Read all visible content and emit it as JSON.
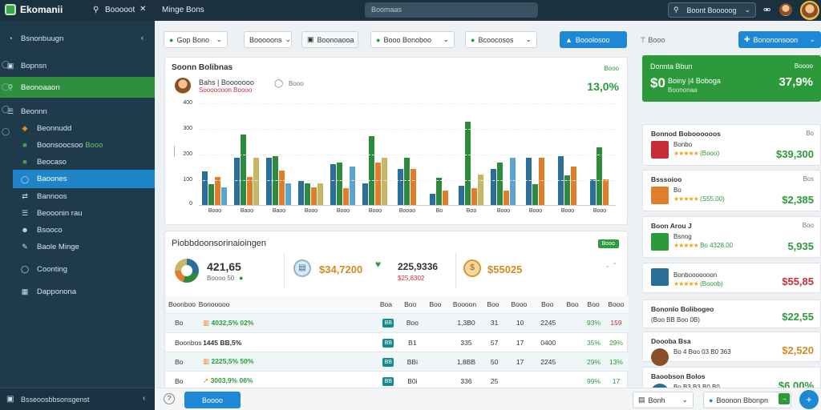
{
  "app": {
    "title": "Ekomanii",
    "logo_color": "#3aa845"
  },
  "topbar": {
    "tab1": "Booooot",
    "tab2": "Minge Bons",
    "search_placeholder": "Boomaas",
    "user_label": "Boont Booooog"
  },
  "sidebar": {
    "items": [
      {
        "label": "Bsnonbuugn",
        "icon": "pie-icon"
      },
      {
        "label": "Bopnsn",
        "icon": "box-icon"
      },
      {
        "label": "Beonoaaon",
        "icon": "search-icon"
      },
      {
        "label": "Beonnn",
        "icon": "list-icon"
      },
      {
        "label": "Beonnudd",
        "icon": "tag-icon"
      },
      {
        "label": "Boonsoocsoo",
        "badge": "Booo",
        "icon": "chart-icon"
      },
      {
        "label": "Beocaso",
        "icon": "doc-icon"
      },
      {
        "label": "Baoones",
        "icon": "circle-icon"
      },
      {
        "label": "Bannoos",
        "icon": "link-icon"
      },
      {
        "label": "Beooonin rau",
        "icon": "menu-icon"
      },
      {
        "label": "Bsooco",
        "icon": "user-icon"
      },
      {
        "label": "Baole Minge",
        "icon": "edit-icon"
      },
      {
        "label": "Coonting",
        "icon": "cog-icon"
      },
      {
        "label": "Dapponona",
        "icon": "grid-icon"
      }
    ],
    "footer": "Bsseoosbbsonsgenst"
  },
  "toolbar": {
    "f1": "Gop Bono",
    "f2": "Booooons",
    "f3": "Boonoaooa",
    "f4": "Booo Bonoboo",
    "f5": "Bcoocosos",
    "action": "Booolosoo",
    "label": "Booo",
    "primary": "Bonononsoon"
  },
  "sales": {
    "title": "Soonn Bolibnas",
    "badge": "Booo",
    "user_name": "Bahs | Booooooo",
    "user_sub": "Sooooooon Boooo",
    "ring_label": "Booo",
    "percent": "13,0%",
    "y_ticks": [
      "400",
      "300",
      "200",
      "100",
      "0"
    ],
    "x_labels": [
      "Booo",
      "Baoo",
      "Baoo",
      "Booo",
      "Booo",
      "Booo",
      "Boooo",
      "Bo",
      "Boo",
      "Booo",
      "Booo",
      "Booo",
      "Booo"
    ]
  },
  "chart_data": {
    "type": "bar",
    "ylim": [
      0,
      400
    ],
    "categories": [
      "Booo",
      "Baoo",
      "Baoo",
      "Booo",
      "Booo",
      "Booo",
      "Boooo",
      "Bo",
      "Boo",
      "Booo",
      "Booo",
      "Booo",
      "Booo"
    ],
    "series": [
      {
        "color": "#2a6f97",
        "values": [
          130,
          185,
          185,
          95,
          160,
          85,
          140,
          45,
          75,
          140,
          185,
          190,
          100
        ]
      },
      {
        "color": "#2e8b3d",
        "values": [
          80,
          275,
          190,
          85,
          165,
          270,
          185,
          105,
          325,
          165,
          80,
          115,
          225
        ]
      },
      {
        "color": "#e07e2c",
        "values": [
          110,
          110,
          135,
          70,
          65,
          165,
          140,
          55,
          65,
          55,
          185,
          150,
          100
        ]
      },
      {
        "color": "#c5b766",
        "values": [
          0,
          185,
          0,
          85,
          0,
          185,
          0,
          0,
          120,
          0,
          0,
          0,
          0
        ]
      },
      {
        "color": "#5aa4cf",
        "values": [
          70,
          0,
          85,
          0,
          150,
          0,
          0,
          0,
          0,
          185,
          0,
          0,
          0
        ]
      }
    ]
  },
  "perf": {
    "title": "Piobbdoonsorinaioingen",
    "badge": "Booo",
    "stat1": {
      "value": "421,65",
      "sub": "Boooo 50"
    },
    "stat2": {
      "value": "$34,7200"
    },
    "stat3": {
      "value": "225,9336",
      "sub": "$25,8302"
    },
    "stat4": {
      "value": "$55025"
    },
    "columns": [
      "Boonboo",
      "Bonooooo",
      "Boa",
      "Boo",
      "Boo",
      "Boooon",
      "Boo",
      "Booo",
      "Boo",
      "Boo",
      "Boo",
      "Booo"
    ],
    "rows": [
      {
        "name": "Bo",
        "desc": "4032,5% 02%",
        "tag": "BB",
        "c1": "Boo",
        "c2": "1,3B0",
        "c3": "31",
        "c4": "10",
        "c5": "2245",
        "c6": "93%",
        "c7": "159",
        "color": "#2c9a3a",
        "c7color": "#c62f3a"
      },
      {
        "name": "Boonbos",
        "desc": "1445 BB,5%",
        "tag": "BB",
        "c1": "B1",
        "c2": "335",
        "c3": "57",
        "c4": "17",
        "c5": "0400",
        "c6": "35%",
        "c7": "29%",
        "color": "#333333",
        "c7color": "#2c9a3a"
      },
      {
        "name": "Bo",
        "desc": "2225,5% 50%",
        "tag": "BB",
        "c1": "BBi",
        "c2": "1,8BB",
        "c3": "50",
        "c4": "17",
        "c5": "2245",
        "c6": "29%",
        "c7": "13%",
        "color": "#2c9a3a",
        "c7color": "#2c9a3a"
      },
      {
        "name": "Bo",
        "desc": "3003,9% 06%",
        "tag": "BB",
        "c1": "B0i",
        "c2": "336",
        "c3": "25",
        "c4": "",
        "c5": "",
        "c6": "99%",
        "c7": "17",
        "color": "#2c9a3a",
        "c7color": "#2c9a3a"
      }
    ]
  },
  "side": {
    "top": {
      "title": "Donnta Bbun",
      "badge": "Boooo",
      "amount": "$0",
      "label": "Boiny |4 Boboga",
      "sub": "Boononaa",
      "percent": "37,9%"
    },
    "items": [
      {
        "title": "Bonnod Boboooooos",
        "badge": "Bo",
        "line1": "Bonbo",
        "line2": "(Booo)",
        "price": "$39,300"
      },
      {
        "title": "Bsssoioo",
        "badge": "Bos",
        "line1": "Bo",
        "line2": "(S55.00)",
        "price": "$2,385"
      },
      {
        "title": "Boon Arou J",
        "badge": "Boo",
        "line1": "Bsnog",
        "line2": "Bo 4328.00",
        "price": "5,935"
      },
      {
        "title": "",
        "badge": "",
        "line1": "Bonbooooooon",
        "line2": "(Booob)",
        "price": "$55,85"
      },
      {
        "title": "Bononlo Bolibogeo",
        "badge": "",
        "line1": "(Boo BB Boo 0B)",
        "line2": "",
        "price": "$22,55"
      },
      {
        "title": "Doooba Bsa",
        "badge": "",
        "line1": "Bo 4 Boo 03 B0 363",
        "line2": "",
        "price": "$2,520"
      },
      {
        "title": "Baoobson Bolos",
        "badge": "",
        "line1": "Bo B3 B3 B0 B0",
        "line2": "",
        "price": "$6,00%"
      }
    ]
  },
  "footer": {
    "button": "Boooo",
    "select": "Bonh",
    "chat": "Boonon Bbonpn"
  }
}
